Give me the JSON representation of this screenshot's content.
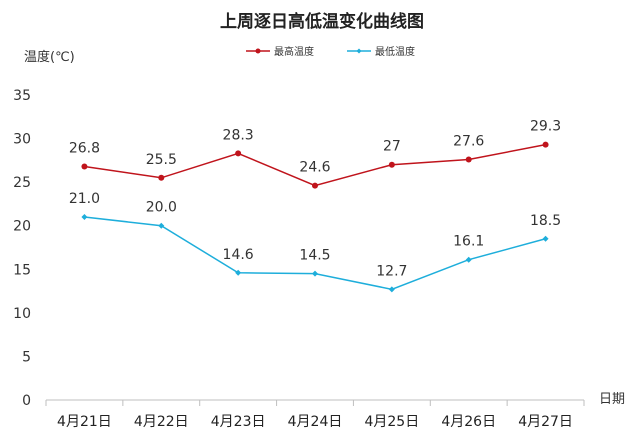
{
  "chart_data": {
    "type": "line",
    "title": "上周逐日高低温变化曲线图",
    "ylabel": "温度(℃)",
    "xlabel": "日期",
    "ylim": [
      0,
      35
    ],
    "yticks": [
      0,
      5,
      10,
      15,
      20,
      25,
      30,
      35
    ],
    "categories": [
      "4月21日",
      "4月22日",
      "4月23日",
      "4月24日",
      "4月25日",
      "4月26日",
      "4月27日"
    ],
    "legend_position": "top-center",
    "grid": false,
    "series": [
      {
        "name": "最高温度",
        "color": "#C0141C",
        "values": [
          26.8,
          25.5,
          28.3,
          24.6,
          27,
          27.6,
          29.3
        ],
        "labels": [
          "26.8",
          "25.5",
          "28.3",
          "24.6",
          "27",
          "27.6",
          "29.3"
        ]
      },
      {
        "name": "最低温度",
        "color": "#1EAEDB",
        "values": [
          21.0,
          20.0,
          14.6,
          14.5,
          12.7,
          16.1,
          18.5
        ],
        "labels": [
          "21.0",
          "20.0",
          "14.6",
          "14.5",
          "12.7",
          "16.1",
          "18.5"
        ]
      }
    ]
  }
}
